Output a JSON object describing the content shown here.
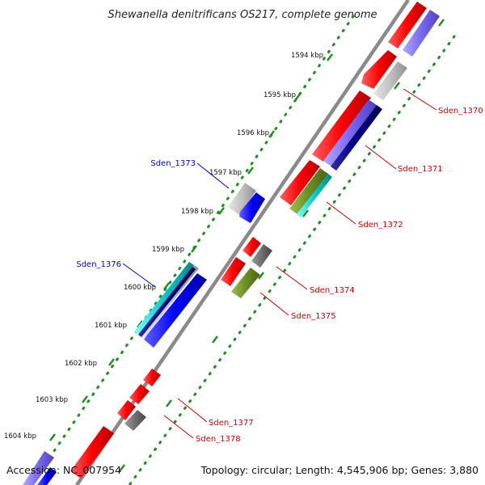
{
  "title": "Shewanella denitrificans OS217, complete genome",
  "accession": "Accession: NC_007954",
  "summary": "Topology: circular; Length: 4,545,906 bp; Genes: 3,880",
  "ticks": [
    "1594 kbp",
    "1595 kbp",
    "1596 kbp",
    "1597 kbp",
    "1598 kbp",
    "1599 kbp",
    "1600 kbp",
    "1601 kbp",
    "1602 kbp",
    "1603 kbp",
    "1604 kbp"
  ],
  "gene_labels": [
    {
      "name": "Sden_1370",
      "color": "#cc0000"
    },
    {
      "name": "Sden_1371",
      "color": "#cc0000"
    },
    {
      "name": "Sden_1372",
      "color": "#cc0000"
    },
    {
      "name": "Sden_1373",
      "color": "#0000cc"
    },
    {
      "name": "Sden_1374",
      "color": "#cc0000"
    },
    {
      "name": "Sden_1375",
      "color": "#cc0000"
    },
    {
      "name": "Sden_1376",
      "color": "#0000cc"
    },
    {
      "name": "Sden_1377",
      "color": "#cc0000"
    },
    {
      "name": "Sden_1378",
      "color": "#cc0000"
    }
  ],
  "colors": {
    "backbone": "#8a8a8a",
    "tick_dots": "#228b22",
    "red": "#ff0000",
    "blue": "#0000ff",
    "navy": "#000080",
    "violet": "#7b68ee",
    "gray": "#c0c0c0",
    "darkgray": "#6e6e6e",
    "olive": "#6b8e23",
    "cyan": "#00cccc"
  }
}
